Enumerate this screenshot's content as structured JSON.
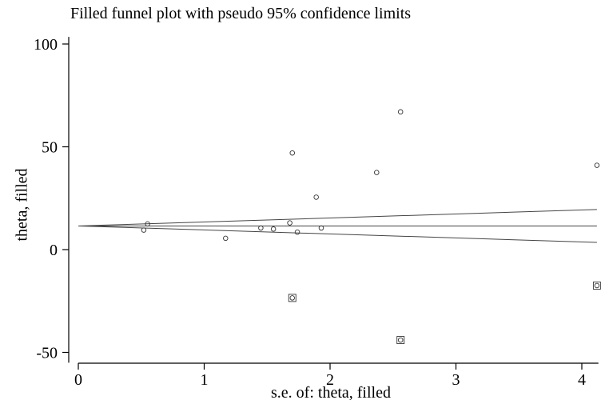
{
  "chart_data": {
    "type": "scatter",
    "title": "Filled funnel plot with pseudo 95% confidence limits",
    "xlabel": "s.e. of: theta, filled",
    "ylabel": "theta, filled",
    "xlim": [
      0,
      4.1
    ],
    "ylim": [
      -55,
      105
    ],
    "xticks": [
      0,
      1,
      2,
      3,
      4
    ],
    "yticks": [
      -50,
      0,
      50,
      100
    ],
    "pooled_estimate": 11.5,
    "funnel_upper_at_xmax": 19.5,
    "funnel_lower_at_xmax": 3.5,
    "observed": [
      {
        "x": 0.52,
        "y": 9.5
      },
      {
        "x": 0.55,
        "y": 12.5
      },
      {
        "x": 1.17,
        "y": 5.5
      },
      {
        "x": 1.45,
        "y": 10.5
      },
      {
        "x": 1.55,
        "y": 10
      },
      {
        "x": 1.68,
        "y": 13
      },
      {
        "x": 1.7,
        "y": 47
      },
      {
        "x": 1.74,
        "y": 8.5
      },
      {
        "x": 1.89,
        "y": 25.5
      },
      {
        "x": 1.93,
        "y": 10.5
      },
      {
        "x": 2.37,
        "y": 37.5
      },
      {
        "x": 2.56,
        "y": 67
      },
      {
        "x": 4.12,
        "y": 41
      }
    ],
    "filled": [
      {
        "x": 1.7,
        "y": -23.5
      },
      {
        "x": 2.56,
        "y": -44
      },
      {
        "x": 4.12,
        "y": -17.5
      }
    ]
  }
}
